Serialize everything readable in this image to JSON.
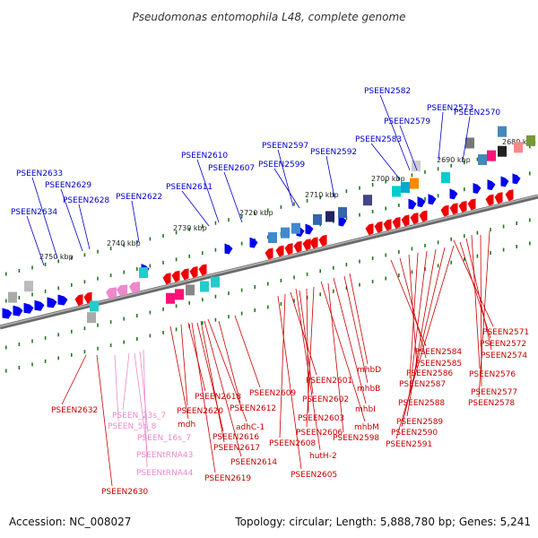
{
  "title": "Pseudomonas entomophila L48, complete genome",
  "footer": {
    "accession": "Accession: NC_008027",
    "summary": "Topology: circular; Length: 5,888,780 bp; Genes: 5,241"
  },
  "colors": {
    "forward_strand": "#0000ee",
    "reverse_strand": "#ee0000",
    "rna": "#ee88cc",
    "backbone": "#777777",
    "tick": "#227722"
  },
  "scale_labels": [
    "2680 kbp",
    "2690 kbp",
    "2700 kbp",
    "2710 kbp",
    "2720 kbp",
    "2730 kbp",
    "2740 kbp",
    "2750 kbp"
  ],
  "top_labels": [
    "PSEEN2582",
    "PSEEN2573",
    "PSEEN2570",
    "PSEEN2579",
    "PSEEN2583",
    "PSEEN2610",
    "PSEEN2597",
    "PSEEN2592",
    "PSEEN2607",
    "PSEEN2599",
    "PSEEN2633",
    "PSEEN2629",
    "PSEEN2611",
    "PSEEN2628",
    "PSEEN2622",
    "PSEEN2634"
  ],
  "bottom_labels": [
    "PSEEN2571",
    "PSEEN2572",
    "PSEEN2574",
    "PSEEN2584",
    "PSEEN2585",
    "PSEEN2586",
    "PSEEN2576",
    "PSEEN2587",
    "PSEEN2577",
    "mhbD",
    "PSEEN2578",
    "PSEEN2601",
    "mhbB",
    "PSEEN2588",
    "PSEEN2609",
    "PSEEN2602",
    "PSEEN2618",
    "mhbI",
    "PSEEN2589",
    "PSEEN2632",
    "PSEEN2620",
    "PSEEN2612",
    "PSEEN2603",
    "mhbM",
    "PSEEN2590",
    "PSEEN_23s_7",
    "mdh",
    "adhC-1",
    "PSEEN2606",
    "PSEEN2598",
    "PSEEN2591",
    "PSEEN_5s_8",
    "PSEEN2616",
    "PSEEN2608",
    "PSEEN_16s_7",
    "PSEEN2617",
    "hutH-2",
    "PSEENtRNA43",
    "PSEEN2614",
    "PSEEN2605",
    "PSEENtRNA44",
    "PSEEN2619",
    "PSEEN2630"
  ]
}
